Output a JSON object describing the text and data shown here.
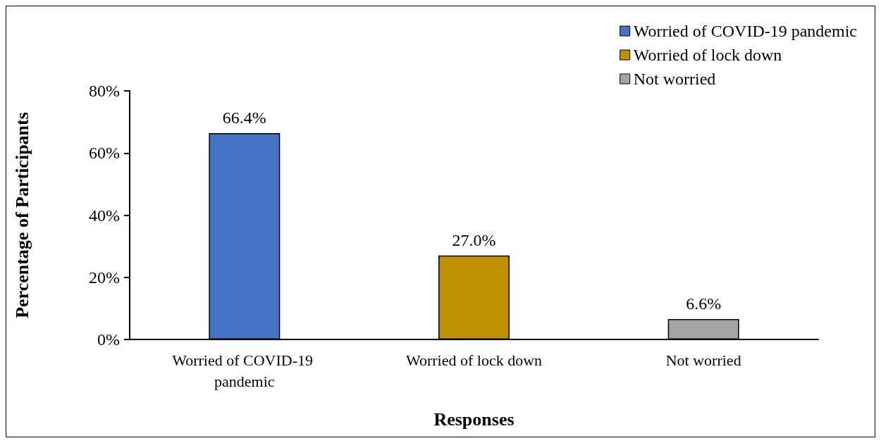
{
  "chart_data": {
    "type": "bar",
    "xlabel": "Responses",
    "ylabel": "Percentage of Participants",
    "categories": [
      "Worried of COVID-19 pandemic",
      "Worried of lock down",
      "Not worried"
    ],
    "series": [
      {
        "name": "Worried of COVID-19 pandemic",
        "color": "#4472c4",
        "values": [
          66.4,
          null,
          null
        ],
        "value_labels": [
          "66.4%",
          null,
          null
        ]
      },
      {
        "name": "Worried of lock down",
        "color": "#bf9000",
        "values": [
          null,
          27.0,
          null
        ],
        "value_labels": [
          null,
          "27.0%",
          null
        ]
      },
      {
        "name": "Not worried",
        "color": "#a5a5a5",
        "values": [
          null,
          null,
          6.6
        ],
        "value_labels": [
          null,
          null,
          "6.6%"
        ]
      }
    ],
    "ylim": [
      0,
      80
    ],
    "yticks": [
      {
        "value": 0,
        "label": "0%"
      },
      {
        "value": 20,
        "label": "20%"
      },
      {
        "value": 40,
        "label": "40%"
      },
      {
        "value": 60,
        "label": "60%"
      },
      {
        "value": 80,
        "label": "80%"
      }
    ],
    "grid": false,
    "legend": "top right"
  }
}
